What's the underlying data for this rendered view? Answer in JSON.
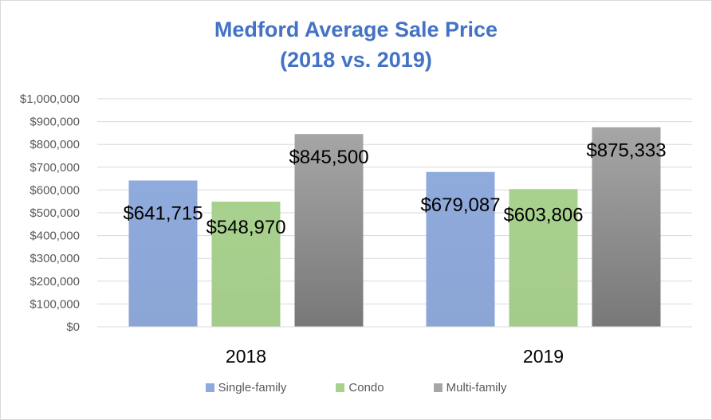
{
  "chart_data": {
    "type": "bar",
    "title": "Medford Average Sale Price",
    "subtitle": "(2018 vs. 2019)",
    "categories": [
      "2018",
      "2019"
    ],
    "series": [
      {
        "name": "Single-family",
        "color": "#8faadc",
        "values": [
          641715,
          679087
        ],
        "labels": [
          "$641,715",
          "$679,087"
        ]
      },
      {
        "name": "Condo",
        "color": "#a9d18e",
        "values": [
          548970,
          603806
        ],
        "labels": [
          "$548,970",
          "$603,806"
        ]
      },
      {
        "name": "Multi-family",
        "color": "#a6a6a6",
        "values": [
          845500,
          875333
        ],
        "labels": [
          "$845,500",
          "$875,333"
        ]
      }
    ],
    "ylim": [
      0,
      1000000
    ],
    "yticks": [
      0,
      100000,
      200000,
      300000,
      400000,
      500000,
      600000,
      700000,
      800000,
      900000,
      1000000
    ],
    "ytick_labels": [
      "$0",
      "$100,000",
      "$200,000",
      "$300,000",
      "$400,000",
      "$500,000",
      "$600,000",
      "$700,000",
      "$800,000",
      "$900,000",
      "$1,000,000"
    ],
    "grid": true,
    "legend": "bottom"
  }
}
